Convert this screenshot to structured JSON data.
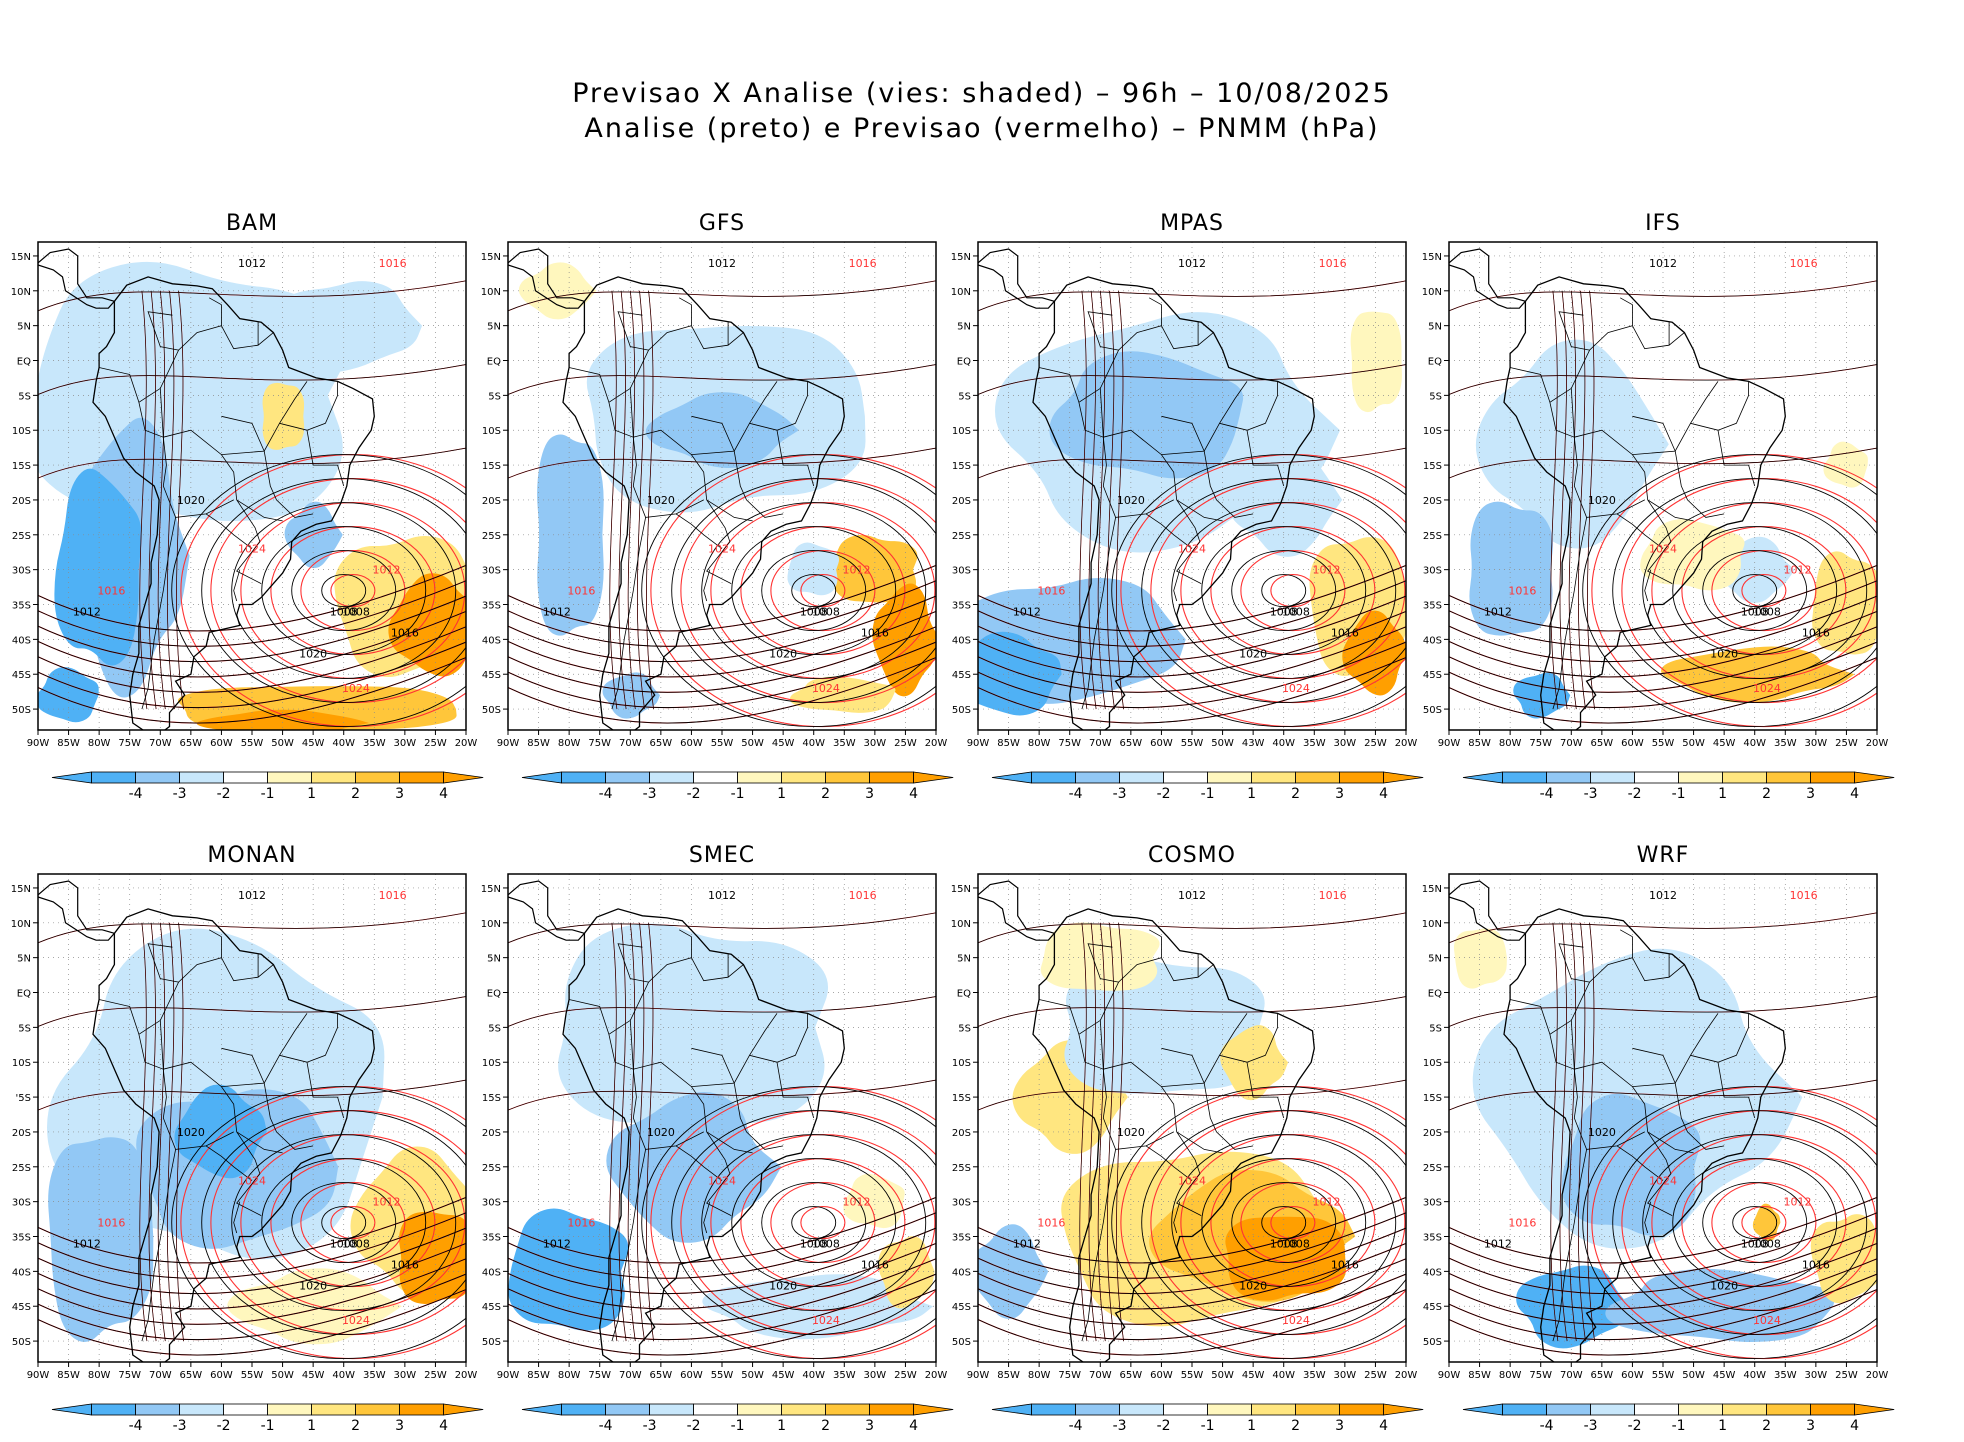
{
  "title_line1": "Previsao X Analise (vies: shaded) – 96h – 10/08/2025",
  "title_line2": "Analise (preto) e Previsao (vermelho) – PNMM (hPa)",
  "colors": {
    "bias_neg4": "#4fb1f5",
    "bias_neg3": "#92c8f5",
    "bias_neg2": "#c8e7fb",
    "bias_neg1": "#e8f6fd",
    "bias_pos1": "#fff7be",
    "bias_pos2": "#ffe680",
    "bias_pos3": "#ffc63a",
    "bias_pos4": "#ff9f00",
    "analysis_contour": "#000000",
    "forecast_contour": "#ff3333",
    "coastline": "#000000"
  },
  "colorbar_labels": [
    "-4",
    "-3",
    "-2",
    "-1",
    "1",
    "2",
    "3",
    "4"
  ],
  "lon_ticks": [
    "90W",
    "85W",
    "80W",
    "75W",
    "70W",
    "65W",
    "60W",
    "55W",
    "50W",
    "45W",
    "40W",
    "35W",
    "30W",
    "25W",
    "20W"
  ],
  "mpas_lon_ticks": [
    "90W",
    "85W",
    "80W",
    "75W",
    "70W",
    "65W",
    "60W",
    "55W",
    "50W",
    "43W",
    "40W",
    "35W",
    "30W",
    "25W",
    "20W"
  ],
  "lat_ticks": [
    "15N",
    "10N",
    "5N",
    "EQ",
    "5S",
    "10S",
    "15S",
    "20S",
    "25S",
    "30S",
    "35S",
    "40S",
    "45S",
    "50S"
  ],
  "lat_ticks_monan": [
    "15N",
    "10N",
    "5N",
    "EQ",
    "5S",
    "10S",
    "'5S",
    "20S",
    "25S",
    "30S",
    "35S",
    "40S",
    "45S",
    "50S"
  ],
  "panels": [
    {
      "name": "BAM",
      "low_center": "1008",
      "labels": [
        "1012",
        "1016",
        "1020",
        "1024",
        "1012",
        "1016",
        "1020",
        "1024",
        "1008",
        "1012",
        "1016"
      ]
    },
    {
      "name": "GFS",
      "low_center": "1008",
      "labels": [
        "1012",
        "1016",
        "1020",
        "1024",
        "1012",
        "1016",
        "1020",
        "1024",
        "1008",
        "1012",
        "1016"
      ]
    },
    {
      "name": "MPAS",
      "low_center": "1008",
      "labels": [
        "1012",
        "1016",
        "1020",
        "1024",
        "1012",
        "1016",
        "1020",
        "1024",
        "1008",
        "1012",
        "1016"
      ]
    },
    {
      "name": "IFS",
      "low_center": "1008",
      "labels": [
        "1012",
        "1016",
        "1020",
        "1024",
        "1012",
        "1016",
        "1020",
        "1024",
        "1008",
        "1012",
        "1016"
      ]
    },
    {
      "name": "MONAN",
      "low_center": "1008",
      "labels": [
        "1012",
        "1016",
        "1020",
        "1024",
        "1012",
        "1016",
        "1020",
        "1024",
        "1008",
        "1012",
        "1016"
      ]
    },
    {
      "name": "SMEC",
      "low_center": "1008",
      "labels": [
        "1012",
        "1016",
        "1020",
        "1024",
        "1012",
        "1016",
        "1020",
        "1024",
        "1008",
        "1012",
        "1016"
      ]
    },
    {
      "name": "COSMO",
      "low_center": "1008",
      "labels": [
        "1012",
        "1016",
        "1020",
        "1024",
        "1012",
        "1016",
        "1020",
        "1024",
        "1008",
        "1012",
        "1016"
      ]
    },
    {
      "name": "WRF",
      "low_center": "1008",
      "labels": [
        "1012",
        "1016",
        "1020",
        "1024",
        "1012",
        "1016",
        "1020",
        "1024",
        "1008",
        "1012",
        "1016"
      ]
    }
  ]
}
